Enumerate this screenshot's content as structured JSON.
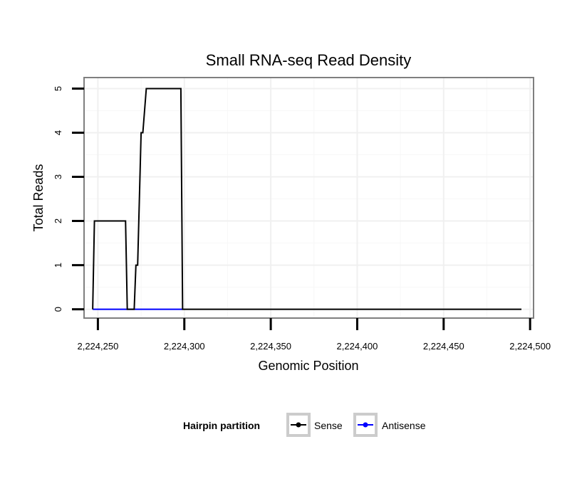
{
  "chart_data": {
    "type": "line",
    "title": "Small RNA-seq Read Density",
    "xlabel": "Genomic Position",
    "ylabel": "Total Reads",
    "xlim": [
      2224242,
      2224502
    ],
    "ylim": [
      -0.2,
      5.25
    ],
    "x_ticks": [
      2224250,
      2224300,
      2224350,
      2224400,
      2224450,
      2224500
    ],
    "x_tick_labels": [
      "2,224,250",
      "2,224,300",
      "2,224,350",
      "2,224,400",
      "2,224,450",
      "2,224,500"
    ],
    "y_ticks": [
      0,
      1,
      2,
      3,
      4,
      5
    ],
    "y_tick_labels": [
      "0",
      "1",
      "2",
      "3",
      "4",
      "5"
    ],
    "grid": true,
    "legend_position": "bottom",
    "legend_title": "Hairpin partition",
    "series": [
      {
        "name": "Sense",
        "color": "#000000",
        "x": [
          2224247,
          2224248,
          2224266,
          2224267,
          2224271,
          2224272,
          2224273,
          2224275,
          2224276,
          2224278,
          2224279,
          2224298,
          2224299,
          2224495
        ],
        "y": [
          0,
          2,
          2,
          0,
          0,
          1,
          1,
          4,
          4,
          5,
          5,
          5,
          0,
          0
        ]
      },
      {
        "name": "Antisense",
        "color": "#0000ff",
        "x": [
          2224247,
          2224299
        ],
        "y": [
          0,
          0
        ]
      }
    ]
  }
}
